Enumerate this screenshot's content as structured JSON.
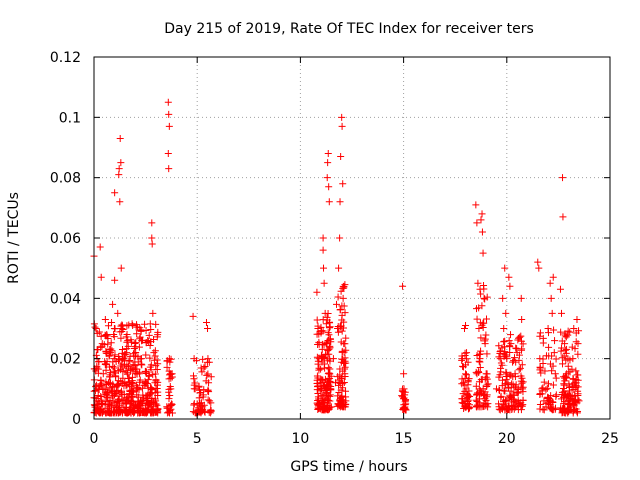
{
  "chart_data": {
    "type": "scatter",
    "title": "Day 215 of 2019, Rate Of TEC Index for receiver ters",
    "xlabel": "GPS time / hours",
    "ylabel": "ROTI / TECUs",
    "xlim": [
      0,
      25
    ],
    "ylim": [
      0,
      0.12
    ],
    "xticks": [
      0,
      5,
      10,
      15,
      20,
      25
    ],
    "xtick_labels": [
      "0",
      "5",
      "10",
      "15",
      "20",
      "25"
    ],
    "yticks": [
      0,
      0.02,
      0.04,
      0.06,
      0.08,
      0.1,
      0.12
    ],
    "ytick_labels": [
      "0",
      "0.02",
      "0.04",
      "0.06",
      "0.08",
      "0.1",
      "0.12"
    ],
    "grid": true,
    "marker": "+",
    "color": "#ff0000",
    "points": [
      [
        0.0,
        0.054
      ],
      [
        0.1,
        0.03
      ],
      [
        0.15,
        0.02
      ],
      [
        0.2,
        0.01
      ],
      [
        0.25,
        0.005
      ],
      [
        0.3,
        0.057
      ],
      [
        0.35,
        0.047
      ],
      [
        0.4,
        0.025
      ],
      [
        0.45,
        0.015
      ],
      [
        0.5,
        0.008
      ],
      [
        0.55,
        0.033
      ],
      [
        0.6,
        0.018
      ],
      [
        0.7,
        0.012
      ],
      [
        0.75,
        0.004
      ],
      [
        0.8,
        0.022
      ],
      [
        0.85,
        0.032
      ],
      [
        0.9,
        0.038
      ],
      [
        0.95,
        0.028
      ],
      [
        1.0,
        0.046
      ],
      [
        1.0,
        0.075
      ],
      [
        1.05,
        0.014
      ],
      [
        1.1,
        0.009
      ],
      [
        1.15,
        0.035
      ],
      [
        1.2,
        0.081
      ],
      [
        1.22,
        0.083
      ],
      [
        1.25,
        0.072
      ],
      [
        1.27,
        0.093
      ],
      [
        1.3,
        0.085
      ],
      [
        1.32,
        0.05
      ],
      [
        1.35,
        0.03
      ],
      [
        1.4,
        0.02
      ],
      [
        1.45,
        0.011
      ],
      [
        1.5,
        0.006
      ],
      [
        1.55,
        0.016
      ],
      [
        1.6,
        0.028
      ],
      [
        1.7,
        0.012
      ],
      [
        1.8,
        0.008
      ],
      [
        1.9,
        0.018
      ],
      [
        2.0,
        0.024
      ],
      [
        2.05,
        0.01
      ],
      [
        2.1,
        0.004
      ],
      [
        2.2,
        0.015
      ],
      [
        2.3,
        0.02
      ],
      [
        2.4,
        0.007
      ],
      [
        2.5,
        0.012
      ],
      [
        2.6,
        0.005
      ],
      [
        2.8,
        0.065
      ],
      [
        2.8,
        0.06
      ],
      [
        2.82,
        0.058
      ],
      [
        2.85,
        0.035
      ],
      [
        2.9,
        0.022
      ],
      [
        2.95,
        0.012
      ],
      [
        3.0,
        0.005
      ],
      [
        3.6,
        0.105
      ],
      [
        3.62,
        0.101
      ],
      [
        3.65,
        0.097
      ],
      [
        3.6,
        0.088
      ],
      [
        3.62,
        0.083
      ],
      [
        3.65,
        0.02
      ],
      [
        3.7,
        0.015
      ],
      [
        3.72,
        0.01
      ],
      [
        3.75,
        0.005
      ],
      [
        3.8,
        0.002
      ],
      [
        4.8,
        0.034
      ],
      [
        4.85,
        0.02
      ],
      [
        4.9,
        0.01
      ],
      [
        5.0,
        0.005
      ],
      [
        5.1,
        0.007
      ],
      [
        5.3,
        0.008
      ],
      [
        5.45,
        0.032
      ],
      [
        5.5,
        0.03
      ],
      [
        5.52,
        0.02
      ],
      [
        5.55,
        0.012
      ],
      [
        5.6,
        0.006
      ],
      [
        5.65,
        0.003
      ],
      [
        10.8,
        0.042
      ],
      [
        10.85,
        0.03
      ],
      [
        10.9,
        0.02
      ],
      [
        10.95,
        0.012
      ],
      [
        11.0,
        0.006
      ],
      [
        11.05,
        0.003
      ],
      [
        11.1,
        0.06
      ],
      [
        11.1,
        0.056
      ],
      [
        11.12,
        0.05
      ],
      [
        11.15,
        0.045
      ],
      [
        11.2,
        0.035
      ],
      [
        11.25,
        0.025
      ],
      [
        11.3,
        0.08
      ],
      [
        11.32,
        0.085
      ],
      [
        11.35,
        0.088
      ],
      [
        11.37,
        0.077
      ],
      [
        11.4,
        0.072
      ],
      [
        11.42,
        0.015
      ],
      [
        11.45,
        0.008
      ],
      [
        11.5,
        0.004
      ],
      [
        11.6,
        0.02
      ],
      [
        11.7,
        0.012
      ],
      [
        11.75,
        0.038
      ],
      [
        11.8,
        0.03
      ],
      [
        11.85,
        0.05
      ],
      [
        11.9,
        0.06
      ],
      [
        11.92,
        0.072
      ],
      [
        11.95,
        0.087
      ],
      [
        12.0,
        0.1
      ],
      [
        12.02,
        0.097
      ],
      [
        12.05,
        0.078
      ],
      [
        12.07,
        0.04
      ],
      [
        12.1,
        0.025
      ],
      [
        12.15,
        0.015
      ],
      [
        12.2,
        0.006
      ],
      [
        14.95,
        0.044
      ],
      [
        15.0,
        0.015
      ],
      [
        15.02,
        0.01
      ],
      [
        15.05,
        0.008
      ],
      [
        15.1,
        0.005
      ],
      [
        15.12,
        0.003
      ],
      [
        17.85,
        0.02
      ],
      [
        17.9,
        0.012
      ],
      [
        17.95,
        0.03
      ],
      [
        18.0,
        0.031
      ],
      [
        18.05,
        0.022
      ],
      [
        18.1,
        0.008
      ],
      [
        18.15,
        0.004
      ],
      [
        18.5,
        0.071
      ],
      [
        18.55,
        0.065
      ],
      [
        18.6,
        0.045
      ],
      [
        18.65,
        0.03
      ],
      [
        18.7,
        0.02
      ],
      [
        18.75,
        0.066
      ],
      [
        18.8,
        0.068
      ],
      [
        18.82,
        0.062
      ],
      [
        18.85,
        0.055
      ],
      [
        18.9,
        0.04
      ],
      [
        18.95,
        0.025
      ],
      [
        19.0,
        0.015
      ],
      [
        19.05,
        0.008
      ],
      [
        19.5,
        0.01
      ],
      [
        19.6,
        0.005
      ],
      [
        19.8,
        0.04
      ],
      [
        19.85,
        0.03
      ],
      [
        19.9,
        0.05
      ],
      [
        19.95,
        0.035
      ],
      [
        20.0,
        0.02
      ],
      [
        20.05,
        0.012
      ],
      [
        20.1,
        0.047
      ],
      [
        20.15,
        0.044
      ],
      [
        20.2,
        0.025
      ],
      [
        20.3,
        0.008
      ],
      [
        20.4,
        0.015
      ],
      [
        20.5,
        0.022
      ],
      [
        20.55,
        0.01
      ],
      [
        20.6,
        0.005
      ],
      [
        20.7,
        0.04
      ],
      [
        20.72,
        0.033
      ],
      [
        20.75,
        0.018
      ],
      [
        21.5,
        0.052
      ],
      [
        21.55,
        0.05
      ],
      [
        21.6,
        0.02
      ],
      [
        21.7,
        0.01
      ],
      [
        21.8,
        0.006
      ],
      [
        21.9,
        0.004
      ],
      [
        22.0,
        0.03
      ],
      [
        22.1,
        0.045
      ],
      [
        22.15,
        0.04
      ],
      [
        22.2,
        0.035
      ],
      [
        22.25,
        0.047
      ],
      [
        22.3,
        0.022
      ],
      [
        22.35,
        0.015
      ],
      [
        22.4,
        0.008
      ],
      [
        22.6,
        0.043
      ],
      [
        22.65,
        0.035
      ],
      [
        22.7,
        0.08
      ],
      [
        22.72,
        0.067
      ],
      [
        22.8,
        0.025
      ],
      [
        22.9,
        0.015
      ],
      [
        23.0,
        0.008
      ],
      [
        23.1,
        0.004
      ],
      [
        23.2,
        0.02
      ],
      [
        23.3,
        0.012
      ],
      [
        23.4,
        0.033
      ],
      [
        23.45,
        0.025
      ],
      [
        23.5,
        0.006
      ]
    ],
    "clusters": [
      {
        "x": [
          0.0,
          3.1
        ],
        "y": [
          0.002,
          0.032
        ],
        "n": 520
      },
      {
        "x": [
          3.5,
          3.8
        ],
        "y": [
          0.002,
          0.02
        ],
        "n": 30
      },
      {
        "x": [
          4.8,
          5.7
        ],
        "y": [
          0.002,
          0.02
        ],
        "n": 60
      },
      {
        "x": [
          10.8,
          11.5
        ],
        "y": [
          0.003,
          0.035
        ],
        "n": 170
      },
      {
        "x": [
          11.8,
          12.2
        ],
        "y": [
          0.004,
          0.045
        ],
        "n": 90
      },
      {
        "x": [
          14.9,
          15.1
        ],
        "y": [
          0.003,
          0.01
        ],
        "n": 25
      },
      {
        "x": [
          17.8,
          18.2
        ],
        "y": [
          0.003,
          0.022
        ],
        "n": 50
      },
      {
        "x": [
          18.5,
          19.1
        ],
        "y": [
          0.004,
          0.045
        ],
        "n": 80
      },
      {
        "x": [
          19.6,
          20.8
        ],
        "y": [
          0.003,
          0.028
        ],
        "n": 140
      },
      {
        "x": [
          21.6,
          22.4
        ],
        "y": [
          0.003,
          0.03
        ],
        "n": 60
      },
      {
        "x": [
          22.6,
          23.5
        ],
        "y": [
          0.002,
          0.03
        ],
        "n": 130
      }
    ]
  }
}
